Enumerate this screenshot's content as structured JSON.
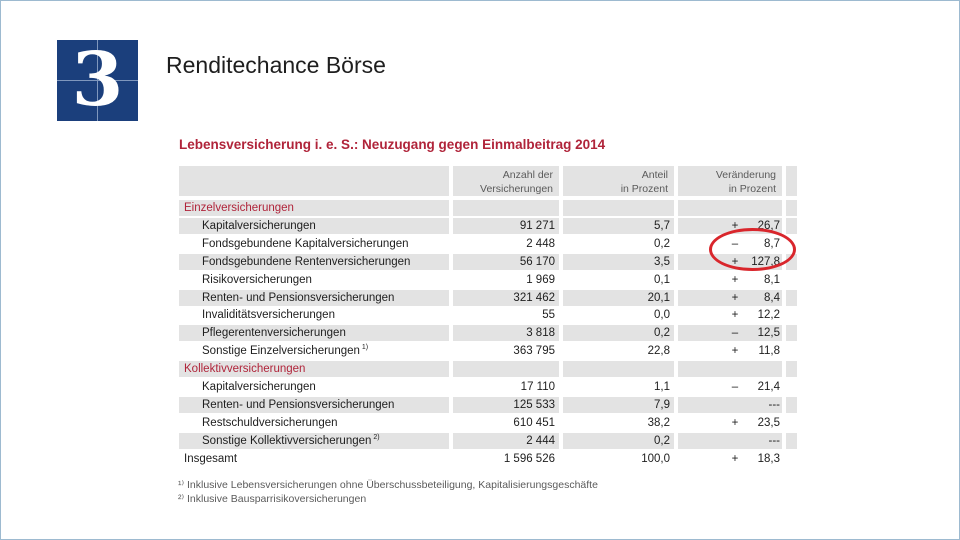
{
  "slide": {
    "number": "3",
    "title": "Renditechance Börse"
  },
  "table": {
    "title": "Lebensversicherung i. e. S.: Neuzugang gegen Einmalbeitrag 2014",
    "headers": {
      "count_line1": "Anzahl der",
      "count_line2": "Versicherungen",
      "share_line1": "Anteil",
      "share_line2": "in Prozent",
      "change_line1": "Veränderung",
      "change_line2": "in Prozent"
    },
    "rows": [
      {
        "type": "section",
        "label": "Einzelversicherungen",
        "count": "",
        "share": "",
        "sign": "",
        "change": ""
      },
      {
        "type": "item",
        "label": "Kapitalversicherungen",
        "sup": "",
        "count": "91 271",
        "share": "5,7",
        "sign": "+",
        "change": "26,7"
      },
      {
        "type": "item",
        "label": "Fondsgebundene Kapitalversicherungen",
        "sup": "",
        "count": "2 448",
        "share": "0,2",
        "sign": "–",
        "change": "8,7"
      },
      {
        "type": "item",
        "label": "Fondsgebundene Rentenversicherungen",
        "sup": "",
        "count": "56 170",
        "share": "3,5",
        "sign": "+",
        "change": "127,8"
      },
      {
        "type": "item",
        "label": "Risikoversicherungen",
        "sup": "",
        "count": "1 969",
        "share": "0,1",
        "sign": "+",
        "change": "8,1"
      },
      {
        "type": "item",
        "label": "Renten- und Pensionsversicherungen",
        "sup": "",
        "count": "321 462",
        "share": "20,1",
        "sign": "+",
        "change": "8,4"
      },
      {
        "type": "item",
        "label": "Invaliditätsversicherungen",
        "sup": "",
        "count": "55",
        "share": "0,0",
        "sign": "+",
        "change": "12,2"
      },
      {
        "type": "item",
        "label": "Pflegerentenversicherungen",
        "sup": "",
        "count": "3 818",
        "share": "0,2",
        "sign": "–",
        "change": "12,5"
      },
      {
        "type": "item",
        "label": "Sonstige Einzelversicherungen",
        "sup": "1)",
        "count": "363 795",
        "share": "22,8",
        "sign": "+",
        "change": "11,8"
      },
      {
        "type": "section",
        "label": "Kollektivversicherungen",
        "count": "",
        "share": "",
        "sign": "",
        "change": ""
      },
      {
        "type": "item",
        "label": "Kapitalversicherungen",
        "sup": "",
        "count": "17 110",
        "share": "1,1",
        "sign": "–",
        "change": "21,4"
      },
      {
        "type": "item",
        "label": "Renten- und Pensionsversicherungen",
        "sup": "",
        "count": "125 533",
        "share": "7,9",
        "sign": "",
        "change": "---"
      },
      {
        "type": "item",
        "label": "Restschuldversicherungen",
        "sup": "",
        "count": "610 451",
        "share": "38,2",
        "sign": "+",
        "change": "23,5"
      },
      {
        "type": "item",
        "label": "Sonstige Kollektivversicherungen",
        "sup": "2)",
        "count": "2 444",
        "share": "0,2",
        "sign": "",
        "change": "---"
      },
      {
        "type": "total",
        "label": "Insgesamt",
        "sup": "",
        "count": "1 596 526",
        "share": "100,0",
        "sign": "+",
        "change": "18,3"
      }
    ],
    "footnotes": [
      "¹⁾ Inklusive Lebensversicherungen ohne Überschussbeteiligung, Kapitalisierungsgeschäfte",
      "²⁾ Inklusive Bausparrisikoversicherungen"
    ]
  },
  "colors": {
    "brand_blue": "#1b3f7c",
    "accent_red": "#b0243a",
    "highlight_circle": "#d9262c",
    "row_shade": "#e3e3e3"
  }
}
